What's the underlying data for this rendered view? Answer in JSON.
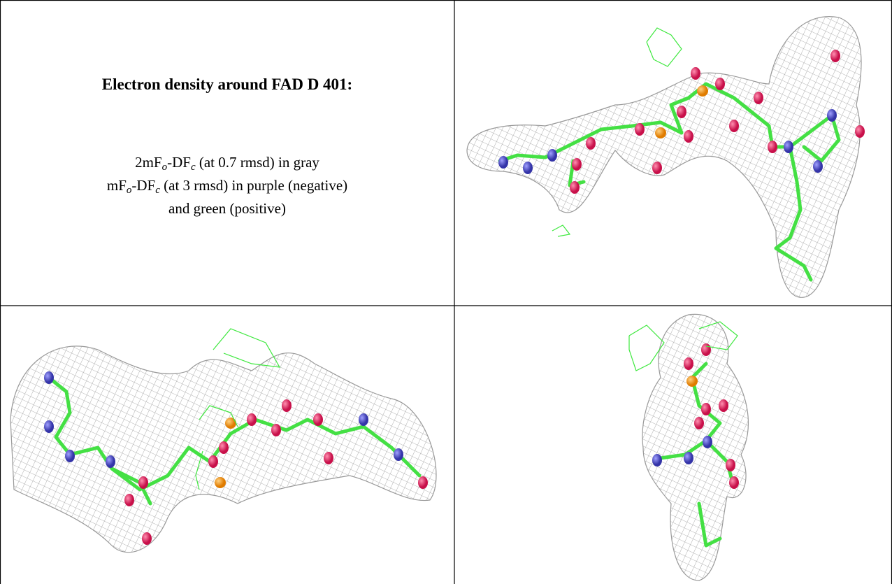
{
  "cell_title": "Electron density around FAD D 401:",
  "legend_lines": [
    [
      {
        "text": "2mF"
      },
      {
        "text": "o",
        "sub": true
      },
      {
        "text": "-DF"
      },
      {
        "text": "c",
        "sub": true
      },
      {
        "text": " (at 0.7 rmsd) in gray"
      }
    ],
    [
      {
        "text": "mF"
      },
      {
        "text": "o",
        "sub": true
      },
      {
        "text": "-DF"
      },
      {
        "text": "c",
        "sub": true
      },
      {
        "text": " (at 3 rmsd) in purple (negative)"
      }
    ],
    [
      {
        "text": "and green (positive)"
      }
    ]
  ]
}
